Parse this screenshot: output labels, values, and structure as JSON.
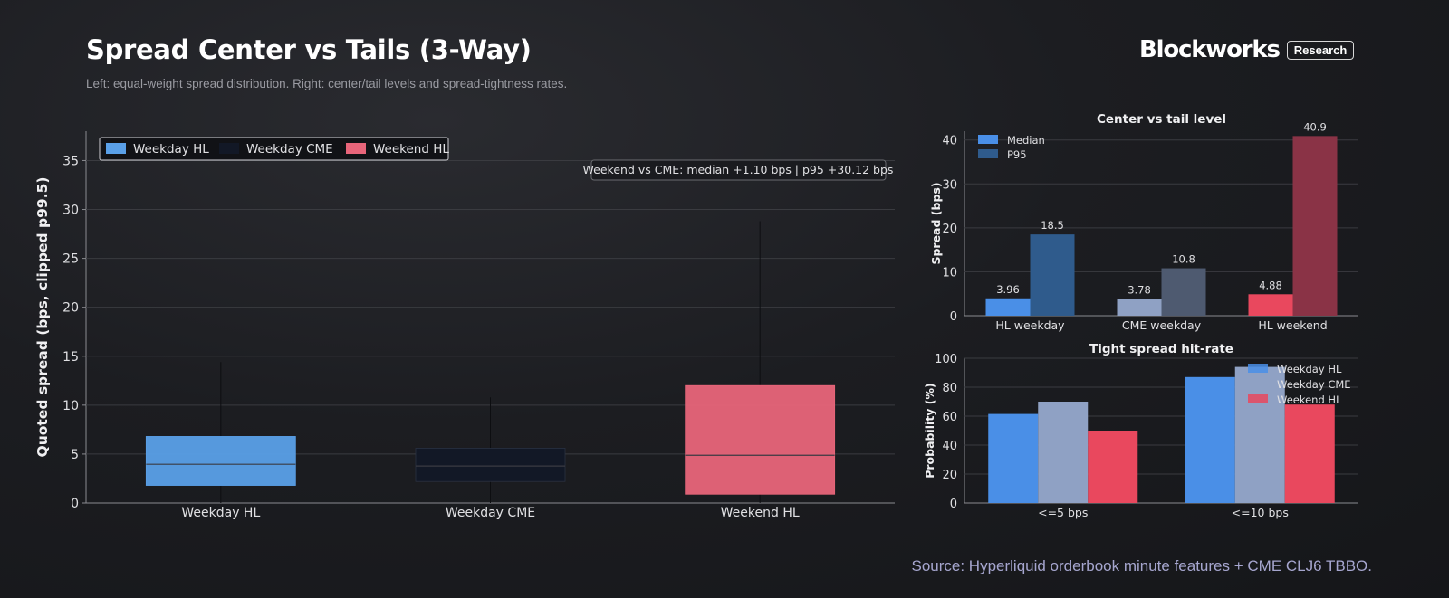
{
  "header": {
    "title": "Spread Center vs Tails (3-Way)",
    "subtitle": "Left: equal-weight spread distribution. Right: center/tail levels and spread-tightness rates.",
    "brand_name": "Blockworks",
    "brand_badge": "Research"
  },
  "footer": {
    "source": "Source: Hyperliquid orderbook minute features + CME CLJ6 TBBO."
  },
  "colors": {
    "hl_weekday": "#5aa0e8",
    "cme_weekday": "#121826",
    "hl_weekend": "#e8657a",
    "median_bar": "#4a8fe7",
    "p95_bar": "#2f5b8c",
    "cme_median": "#8fa1c4",
    "cme_p95": "#4e5a70",
    "hl_weekend_median": "#e9485e",
    "hl_weekend_p95": "#8a3346",
    "grid": "#3a3b40"
  },
  "chart_data": [
    {
      "type": "box",
      "title": "",
      "ylabel": "Quoted spread (bps, clipped p99.5)",
      "ylim": [
        0,
        38
      ],
      "yticks": [
        0,
        5,
        10,
        15,
        20,
        25,
        30,
        35
      ],
      "grid": true,
      "legend": {
        "placement": "top-left",
        "entries": [
          "Weekday HL",
          "Weekday CME",
          "Weekend HL"
        ]
      },
      "annotation": "Weekend vs CME: median +1.10 bps | p95 +30.12 bps",
      "categories": [
        "Weekday HL",
        "Weekday CME",
        "Weekend HL"
      ],
      "boxes": [
        {
          "name": "Weekday HL",
          "whisker_low": 0,
          "q1": 1.8,
          "median": 3.96,
          "q3": 6.8,
          "whisker_high": 14.4
        },
        {
          "name": "Weekday CME",
          "whisker_low": 0,
          "q1": 2.2,
          "median": 3.78,
          "q3": 5.6,
          "whisker_high": 10.8
        },
        {
          "name": "Weekend HL",
          "whisker_low": 0,
          "q1": 0.9,
          "median": 4.88,
          "q3": 12.0,
          "whisker_high": 28.8
        }
      ]
    },
    {
      "type": "bar",
      "title": "Center vs tail level",
      "ylabel": "Spread (bps)",
      "ylim": [
        0,
        42
      ],
      "yticks": [
        0,
        10,
        20,
        30,
        40
      ],
      "grid": true,
      "legend": {
        "placement": "top-left"
      },
      "categories": [
        "HL weekday",
        "CME weekday",
        "HL weekend"
      ],
      "series": [
        {
          "name": "Median",
          "values": [
            3.96,
            3.78,
            4.88
          ],
          "labels": [
            "3.96",
            "3.78",
            "4.88"
          ]
        },
        {
          "name": "P95",
          "values": [
            18.5,
            10.8,
            40.9
          ],
          "labels": [
            "18.5",
            "10.8",
            "40.9"
          ]
        }
      ]
    },
    {
      "type": "bar",
      "title": "Tight spread hit-rate",
      "ylabel": "Probability (%)",
      "ylim": [
        0,
        100
      ],
      "yticks": [
        0,
        20,
        40,
        60,
        80,
        100
      ],
      "grid": true,
      "legend": {
        "placement": "top-right"
      },
      "categories": [
        "<=5 bps",
        "<=10 bps"
      ],
      "series": [
        {
          "name": "Weekday HL",
          "values": [
            61.5,
            87
          ]
        },
        {
          "name": "Weekday CME",
          "values": [
            70,
            94
          ]
        },
        {
          "name": "Weekend HL",
          "values": [
            50,
            68
          ]
        }
      ]
    }
  ]
}
